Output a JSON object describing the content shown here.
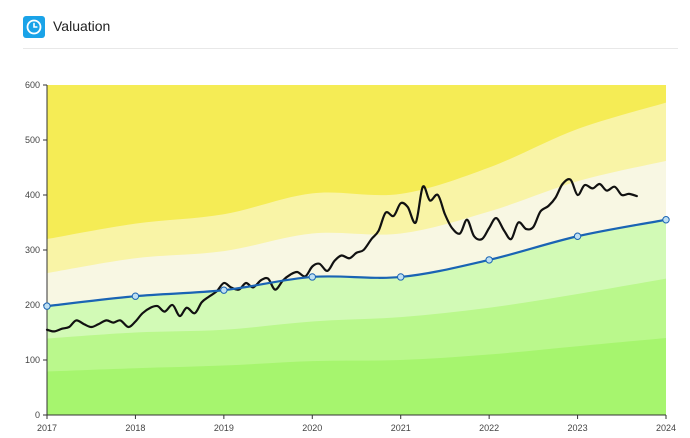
{
  "header": {
    "title": "Valuation",
    "icon": "clock-icon",
    "icon_color": "#1aa3e8"
  },
  "chart_data": {
    "type": "area",
    "title": "",
    "xlabel": "",
    "ylabel": "",
    "xlim": [
      2017,
      2024
    ],
    "ylim": [
      0,
      600
    ],
    "x_ticks": [
      "2017",
      "2018",
      "2019",
      "2020",
      "2021",
      "2022",
      "2023",
      "2024"
    ],
    "y_ticks": [
      "0",
      "100",
      "200",
      "300",
      "400",
      "500",
      "600"
    ],
    "grid": false,
    "legend": "none",
    "bands_x": [
      2017,
      2018,
      2019,
      2020,
      2021,
      2022,
      2023,
      2024
    ],
    "bands": [
      {
        "color": "#a6f56e",
        "upper": [
          79,
          85,
          90,
          98,
          100,
          110,
          125,
          140
        ]
      },
      {
        "color": "#baf88c",
        "upper": [
          139,
          150,
          155,
          170,
          178,
          195,
          220,
          248
        ]
      },
      {
        "color": "#d2fab6",
        "upper": [
          198,
          216,
          227,
          251,
          251,
          282,
          325,
          355
        ]
      },
      {
        "color": "#f8f7e3",
        "upper": [
          258,
          285,
          298,
          330,
          330,
          370,
          425,
          462
        ]
      },
      {
        "color": "#f9f4a6",
        "upper": [
          320,
          348,
          365,
          403,
          402,
          450,
          520,
          568
        ]
      },
      {
        "color": "#f5ec55",
        "upper": [
          600,
          600,
          600,
          600,
          600,
          600,
          600,
          600
        ]
      }
    ],
    "fair_value": {
      "color": "#1a64b4",
      "x": [
        2017,
        2018,
        2019,
        2020,
        2021,
        2022,
        2023,
        2024
      ],
      "values": [
        198,
        216,
        227,
        251,
        251,
        282,
        325,
        355
      ]
    },
    "price": {
      "color": "#111111",
      "x": [
        2017.0,
        2017.08,
        2017.17,
        2017.25,
        2017.33,
        2017.42,
        2017.5,
        2017.58,
        2017.67,
        2017.75,
        2017.83,
        2017.92,
        2018.0,
        2018.08,
        2018.17,
        2018.25,
        2018.33,
        2018.42,
        2018.5,
        2018.58,
        2018.67,
        2018.75,
        2018.83,
        2018.92,
        2019.0,
        2019.08,
        2019.17,
        2019.25,
        2019.33,
        2019.42,
        2019.5,
        2019.58,
        2019.67,
        2019.75,
        2019.83,
        2019.92,
        2020.0,
        2020.08,
        2020.17,
        2020.25,
        2020.33,
        2020.42,
        2020.5,
        2020.58,
        2020.67,
        2020.75,
        2020.83,
        2020.92,
        2021.0,
        2021.08,
        2021.17,
        2021.25,
        2021.33,
        2021.42,
        2021.5,
        2021.58,
        2021.67,
        2021.75,
        2021.83,
        2021.92,
        2022.0,
        2022.08,
        2022.17,
        2022.25,
        2022.33,
        2022.42,
        2022.5,
        2022.58,
        2022.67,
        2022.75,
        2022.83,
        2022.92,
        2023.0,
        2023.08,
        2023.17,
        2023.25,
        2023.33,
        2023.42,
        2023.5,
        2023.58,
        2023.67
      ],
      "values": [
        155,
        152,
        157,
        160,
        172,
        165,
        160,
        165,
        172,
        168,
        172,
        160,
        170,
        185,
        195,
        198,
        188,
        200,
        180,
        195,
        185,
        205,
        215,
        225,
        240,
        232,
        228,
        240,
        232,
        245,
        248,
        228,
        245,
        255,
        260,
        252,
        270,
        275,
        262,
        280,
        290,
        285,
        295,
        300,
        320,
        335,
        368,
        362,
        385,
        378,
        350,
        415,
        390,
        400,
        365,
        340,
        330,
        355,
        325,
        320,
        340,
        358,
        335,
        320,
        350,
        338,
        342,
        370,
        380,
        395,
        420,
        428,
        400,
        418,
        412,
        420,
        408,
        415,
        400,
        402,
        398
      ]
    }
  }
}
